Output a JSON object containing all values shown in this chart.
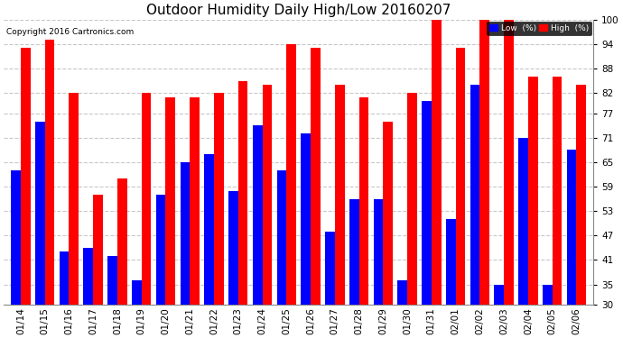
{
  "title": "Outdoor Humidity Daily High/Low 20160207",
  "copyright": "Copyright 2016 Cartronics.com",
  "ylim": [
    30,
    100
  ],
  "yticks": [
    30,
    35,
    41,
    47,
    53,
    59,
    65,
    71,
    77,
    82,
    88,
    94,
    100
  ],
  "dates": [
    "01/14",
    "01/15",
    "01/16",
    "01/17",
    "01/18",
    "01/19",
    "01/20",
    "01/21",
    "01/22",
    "01/23",
    "01/24",
    "01/25",
    "01/26",
    "01/27",
    "01/28",
    "01/29",
    "01/30",
    "01/31",
    "02/01",
    "02/02",
    "02/03",
    "02/04",
    "02/05",
    "02/06"
  ],
  "high": [
    93,
    95,
    82,
    57,
    61,
    82,
    81,
    81,
    82,
    85,
    84,
    94,
    93,
    84,
    81,
    75,
    82,
    100,
    93,
    100,
    100,
    86,
    86,
    84
  ],
  "low": [
    63,
    75,
    43,
    44,
    42,
    36,
    57,
    65,
    67,
    58,
    74,
    63,
    72,
    48,
    56,
    56,
    36,
    80,
    51,
    84,
    35,
    71,
    35,
    68
  ],
  "high_color": "#ff0000",
  "low_color": "#0000ff",
  "bg_color": "#ffffff",
  "grid_color": "#c8c8c8",
  "title_fontsize": 11,
  "tick_fontsize": 7.5,
  "legend_labels": [
    "Low  (%)",
    "High  (%)"
  ],
  "bar_width": 0.4
}
